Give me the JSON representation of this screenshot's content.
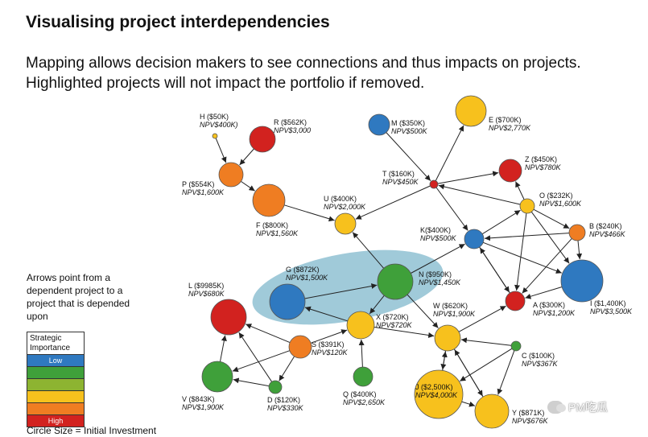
{
  "header": {
    "title": "Visualising project interdependencies",
    "subtitle": "Mapping allows decision makers to see connections and thus impacts on projects. Highlighted projects will not impact the portfolio if removed."
  },
  "legend": {
    "note": "Arrows point from a dependent project to a project that is depended upon",
    "title": "Strategic Importance",
    "levels": [
      {
        "label": "Low",
        "color": "#2f79c0"
      },
      {
        "label": "",
        "color": "#3fa03a"
      },
      {
        "label": "",
        "color": "#8db431"
      },
      {
        "label": "",
        "color": "#f7c11d"
      },
      {
        "label": "",
        "color": "#ef7d22"
      },
      {
        "label": "High",
        "color": "#d2221f"
      }
    ],
    "size_note": "Circle Size = Initial Investment"
  },
  "highlight_color": "#8fc1d2",
  "nodes": [
    {
      "id": "H",
      "label": "H ($50K)",
      "npv": "NPV$400K)",
      "color": "#f7c11d"
    },
    {
      "id": "R",
      "label": "R ($562K)",
      "npv": "NPV$3,000",
      "color": "#d2221f"
    },
    {
      "id": "P",
      "label": "P ($554K)",
      "npv": "NPV$1,600K",
      "color": "#ef7d22"
    },
    {
      "id": "F",
      "label": "F ($800K)",
      "npv": "NPV$1,560K",
      "color": "#ef7d22"
    },
    {
      "id": "U",
      "label": "U ($400K)",
      "npv": "NPV$2,000K",
      "color": "#f7c11d"
    },
    {
      "id": "M",
      "label": "M ($350K)",
      "npv": "NPV$500K",
      "color": "#2f79c0"
    },
    {
      "id": "E",
      "label": "E ($700K)",
      "npv": "NPV$2,770K",
      "color": "#f7c11d"
    },
    {
      "id": "T",
      "label": "T ($160K)",
      "npv": "NPV$450K",
      "color": "#d2221f"
    },
    {
      "id": "Z",
      "label": "Z ($450K)",
      "npv": "NPV$780K",
      "color": "#d2221f"
    },
    {
      "id": "O",
      "label": "O ($232K)",
      "npv": "NPV$1,600K",
      "color": "#f7c11d"
    },
    {
      "id": "B",
      "label": "B ($240K)",
      "npv": "NPV$466K",
      "color": "#ef7d22"
    },
    {
      "id": "K",
      "label": "K($400K)",
      "npv": "NPV$500K",
      "color": "#2f79c0"
    },
    {
      "id": "I",
      "label": "I ($1,400K)",
      "npv": "NPV$3,500K",
      "color": "#2f79c0"
    },
    {
      "id": "A",
      "label": "A ($300K)",
      "npv": "NPV$1,200K",
      "color": "#d2221f"
    },
    {
      "id": "G",
      "label": "G ($872K)",
      "npv": "NPV$1,500K",
      "color": "#2f79c0"
    },
    {
      "id": "N",
      "label": "N ($950K)",
      "npv": "NPV$1,450K",
      "color": "#3fa03a"
    },
    {
      "id": "X",
      "label": "X ($720K)",
      "npv": "NPV$720K",
      "color": "#f7c11d"
    },
    {
      "id": "W",
      "label": "W ($620K)",
      "npv": "NPV$1,900K",
      "color": "#f7c11d"
    },
    {
      "id": "L",
      "label": "L ($9985K)",
      "npv": "NPV$680K",
      "color": "#d2221f"
    },
    {
      "id": "S",
      "label": "S ($391K)",
      "npv": "NPV$120K",
      "color": "#ef7d22"
    },
    {
      "id": "C",
      "label": "C ($100K)",
      "npv": "NPV$367K",
      "color": "#3fa03a"
    },
    {
      "id": "Q",
      "label": "Q ($400K)",
      "npv": "NPV$2,650K",
      "color": "#3fa03a"
    },
    {
      "id": "J",
      "label": "J ($2,500K)",
      "npv": "NPV$4,000K",
      "color": "#f7c11d"
    },
    {
      "id": "Y",
      "label": "Y ($871K)",
      "npv": "NPV$676K",
      "color": "#f7c11d"
    },
    {
      "id": "V",
      "label": "V ($843K)",
      "npv": "NPV$1,900K",
      "color": "#3fa03a"
    },
    {
      "id": "D",
      "label": "D ($120K)",
      "npv": "NPV$330K",
      "color": "#3fa03a"
    }
  ],
  "edges": [
    [
      "H",
      "P"
    ],
    [
      "R",
      "P"
    ],
    [
      "P",
      "F"
    ],
    [
      "F",
      "U"
    ],
    [
      "T",
      "U"
    ],
    [
      "M",
      "T"
    ],
    [
      "T",
      "E"
    ],
    [
      "T",
      "Z"
    ],
    [
      "O",
      "T"
    ],
    [
      "T",
      "K"
    ],
    [
      "K",
      "O"
    ],
    [
      "O",
      "Z"
    ],
    [
      "O",
      "B"
    ],
    [
      "B",
      "K"
    ],
    [
      "K",
      "I"
    ],
    [
      "O",
      "I"
    ],
    [
      "B",
      "I"
    ],
    [
      "B",
      "A"
    ],
    [
      "K",
      "A"
    ],
    [
      "O",
      "A"
    ],
    [
      "I",
      "A"
    ],
    [
      "A",
      "K"
    ],
    [
      "N",
      "K"
    ],
    [
      "N",
      "U"
    ],
    [
      "G",
      "N"
    ],
    [
      "N",
      "X"
    ],
    [
      "X",
      "G"
    ],
    [
      "X",
      "W"
    ],
    [
      "N",
      "W"
    ],
    [
      "W",
      "A"
    ],
    [
      "Q",
      "X"
    ],
    [
      "S",
      "X"
    ],
    [
      "S",
      "L"
    ],
    [
      "S",
      "V"
    ],
    [
      "S",
      "D"
    ],
    [
      "D",
      "L"
    ],
    [
      "V",
      "L"
    ],
    [
      "D",
      "V"
    ],
    [
      "C",
      "W"
    ],
    [
      "C",
      "J"
    ],
    [
      "C",
      "Y"
    ],
    [
      "Y",
      "W"
    ],
    [
      "J",
      "W"
    ],
    [
      "W",
      "J"
    ],
    [
      "W",
      "Y"
    ],
    [
      "J",
      "Y"
    ]
  ],
  "watermark": "PM吃瓜"
}
